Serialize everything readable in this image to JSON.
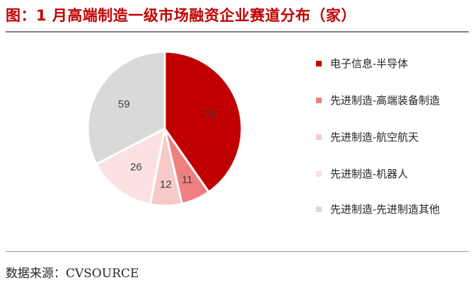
{
  "title": "图：1 月高端制造一级市场融资企业赛道分布（家）",
  "source": "数据来源：CVSOURCE",
  "chart_data": {
    "type": "pie",
    "title": "图：1 月高端制造一级市场融资企业赛道分布（家）",
    "categories": [
      "电子信息-半导体",
      "先进制造-高端装备制造",
      "先进制造-航空航天",
      "先进制造-机器人",
      "先进制造-先进制造其他"
    ],
    "values": [
      73,
      11,
      12,
      26,
      59
    ],
    "colors": [
      "#c00000",
      "#f08080",
      "#f7c9c9",
      "#fbe1e1",
      "#d9d9d9"
    ],
    "start_angle": "12 o'clock",
    "direction": "clockwise",
    "legend_position": "right"
  }
}
